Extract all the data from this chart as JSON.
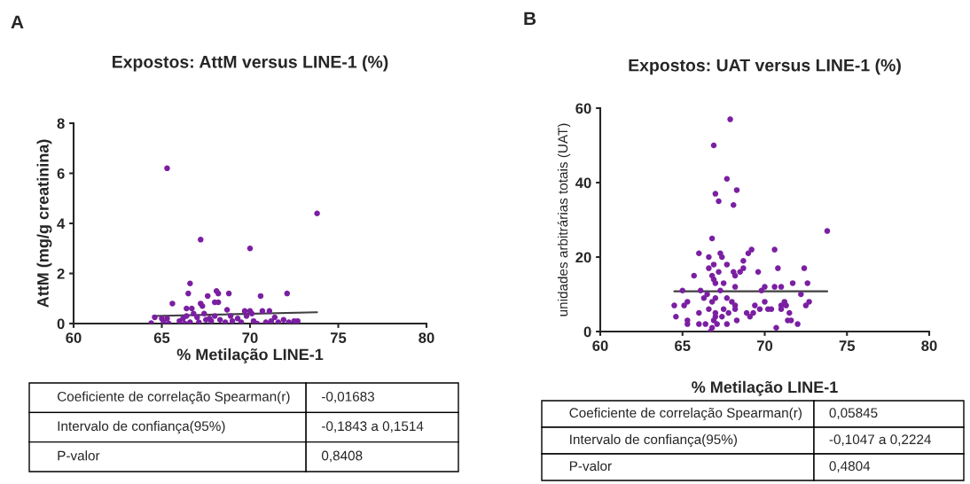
{
  "chart_data": [
    {
      "type": "scatter",
      "title": "Expostos: AttM versus LINE-1 (%)",
      "xlabel": "% Metilação LINE-1",
      "ylabel": "AttM (mg/g creatinina)",
      "xlim": [
        60,
        80
      ],
      "xticks": [
        60,
        65,
        70,
        75,
        80
      ],
      "ylim": [
        0,
        8
      ],
      "yticks": [
        0,
        2,
        4,
        6,
        8
      ],
      "grid": false,
      "series": [
        {
          "marker": "circle",
          "color": "#7b1fa2",
          "x": [
            65.3,
            73.8,
            67.2,
            70.0,
            66.6,
            66.5,
            68.1,
            68.2,
            68.8,
            72.1,
            70.6,
            67.6,
            65.6,
            67.2,
            67.3,
            68.0,
            68.2,
            66.4,
            66.7,
            68.7,
            69.7,
            70.0,
            70.7,
            71.1,
            64.6,
            65.0,
            65.3,
            64.4,
            65.1,
            65.4,
            66.0,
            66.2,
            66.4,
            66.8,
            67.0,
            67.1,
            67.4,
            67.5,
            67.8,
            68.0,
            68.3,
            68.6,
            69.0,
            69.3,
            69.5,
            69.8,
            70.1,
            70.2,
            70.4,
            70.9,
            71.2,
            71.4,
            71.6,
            71.9,
            72.2,
            72.5,
            72.7,
            66.6,
            67.7,
            68.9,
            66.3
          ],
          "values": [
            6.2,
            4.4,
            3.35,
            3.0,
            1.6,
            1.2,
            1.3,
            1.2,
            1.2,
            1.2,
            1.1,
            1.1,
            0.8,
            0.8,
            0.7,
            0.85,
            0.85,
            0.6,
            0.6,
            0.55,
            0.5,
            0.5,
            0.5,
            0.5,
            0.25,
            0.2,
            0.2,
            0.02,
            0.05,
            0.0,
            0.1,
            0.2,
            0.3,
            0.4,
            0.25,
            0.05,
            0.4,
            0.15,
            0.1,
            0.3,
            0.15,
            0.05,
            0.1,
            0.2,
            0.05,
            0.3,
            0.4,
            0.1,
            0.0,
            0.05,
            0.1,
            0.25,
            0.05,
            0.15,
            0.05,
            0.1,
            0.1,
            0.05,
            0.2,
            0.3,
            0.0
          ]
        },
        {
          "type": "line",
          "color": "#404040",
          "x": [
            64.5,
            73.8
          ],
          "values": [
            0.3,
            0.45
          ]
        }
      ],
      "annotations": [
        "A",
        "Coeficiente de correlação Spearman(r)",
        "-0,01683",
        "Intervalo de confiança(95%)",
        "-0,1843 a 0,1514",
        "P-valor",
        "0,8408"
      ]
    },
    {
      "type": "scatter",
      "title": "Expostos: UAT versus LINE-1 (%)",
      "xlabel": "% Metilação LINE-1",
      "ylabel": "unidades arbitrárias totais (UAT)",
      "xlim": [
        60,
        80
      ],
      "xticks": [
        60,
        65,
        70,
        75,
        80
      ],
      "ylim": [
        0,
        60
      ],
      "yticks": [
        0,
        20,
        40,
        60
      ],
      "grid": false,
      "series": [
        {
          "marker": "circle",
          "color": "#7b1fa2",
          "x": [
            67.9,
            66.9,
            67.7,
            68.3,
            67.0,
            67.2,
            68.1,
            73.8,
            66.8,
            69.2,
            70.6,
            66.0,
            67.3,
            67.4,
            66.6,
            69.0,
            68.7,
            67.7,
            66.9,
            66.6,
            68.7,
            70.8,
            72.4,
            68.1,
            68.5,
            69.6,
            67.2,
            68.2,
            65.7,
            66.8,
            66.9,
            67.0,
            67.5,
            71.7,
            72.6,
            68.2,
            70.0,
            70.6,
            71.0,
            65.0,
            66.1,
            67.3,
            69.8,
            72.2,
            66.5,
            66.3,
            67.0,
            67.7,
            65.3,
            66.8,
            68.0,
            70.0,
            71.2,
            72.7,
            72.5,
            64.5,
            65.1,
            68.2,
            69.4,
            71.0,
            71.3,
            66.6,
            67.5,
            68.2,
            69.7,
            70.2,
            70.4,
            71.0,
            66.0,
            67.0,
            67.8,
            68.9,
            69.3,
            71.5,
            64.6,
            67.4,
            69.1,
            66.9,
            68.3,
            71.4,
            71.6,
            65.3,
            65.3,
            66.0,
            66.4,
            67.1,
            67.7,
            72.0,
            70.7,
            66.7,
            67.0,
            66.8
          ],
          "values": [
            57,
            50,
            41,
            38,
            37,
            35,
            34,
            27,
            25,
            22,
            22,
            21,
            21,
            20,
            20,
            21,
            19,
            18,
            18,
            17,
            17,
            17,
            17,
            16,
            16,
            16,
            16,
            15,
            15,
            15,
            14,
            13,
            13,
            13,
            13,
            12,
            12,
            12,
            12,
            11,
            11,
            11,
            11,
            10,
            10,
            9,
            9,
            9,
            8,
            8,
            8,
            8,
            8,
            8,
            7,
            7,
            7,
            7,
            7,
            7,
            7,
            6,
            6,
            6,
            6,
            6,
            6,
            6,
            5,
            5,
            5,
            5,
            5,
            5,
            4,
            4,
            4,
            3,
            3,
            3,
            3,
            3,
            2,
            2,
            2,
            2,
            2,
            2,
            1,
            0,
            4,
            1
          ]
        },
        {
          "type": "line",
          "color": "#404040",
          "x": [
            64.5,
            73.8
          ],
          "values": [
            10.8,
            10.8
          ]
        }
      ],
      "annotations": [
        "B",
        "Coeficiente de correlação Spearman(r)",
        "0,05845",
        "Intervalo de confiança(95%)",
        "-0,1047 a 0,2224",
        "P-valor",
        "0,4804"
      ]
    }
  ]
}
